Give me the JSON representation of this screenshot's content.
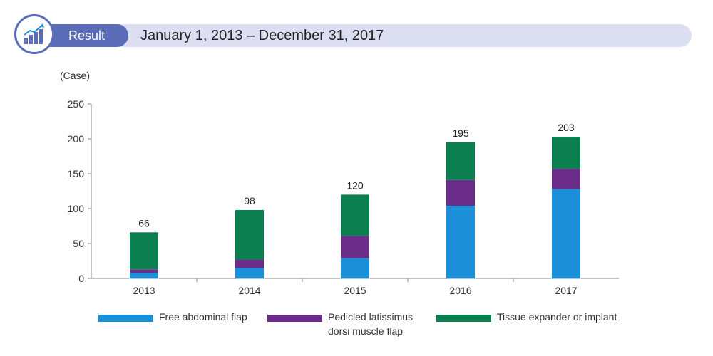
{
  "header": {
    "badge_label": "Result",
    "title": "January 1, 2013 – December 31, 2017",
    "icon": "chart-growth-icon",
    "accent_color": "#5b6cb8",
    "bar_color": "#dcdff2"
  },
  "chart_data": {
    "type": "bar",
    "stacked": true,
    "title": "",
    "xlabel": "",
    "ylabel": "(Case)",
    "ylim": [
      0,
      250
    ],
    "yticks": [
      0,
      50,
      100,
      150,
      200,
      250
    ],
    "grid": false,
    "legend_position": "bottom",
    "categories": [
      "2013",
      "2014",
      "2015",
      "2016",
      "2017"
    ],
    "series": [
      {
        "name": "Free abdominal flap",
        "color": "#1b8fd8",
        "values": [
          8,
          15,
          29,
          104,
          128
        ]
      },
      {
        "name": "Pedicled latissimus\ndorsi muscle flap",
        "color": "#6b2c8a",
        "values": [
          5,
          12,
          32,
          37,
          29
        ]
      },
      {
        "name": "Tissue expander or implant",
        "color": "#0b7f4f",
        "values": [
          53,
          71,
          59,
          54,
          46
        ]
      }
    ],
    "totals": [
      66,
      98,
      120,
      195,
      203
    ]
  }
}
